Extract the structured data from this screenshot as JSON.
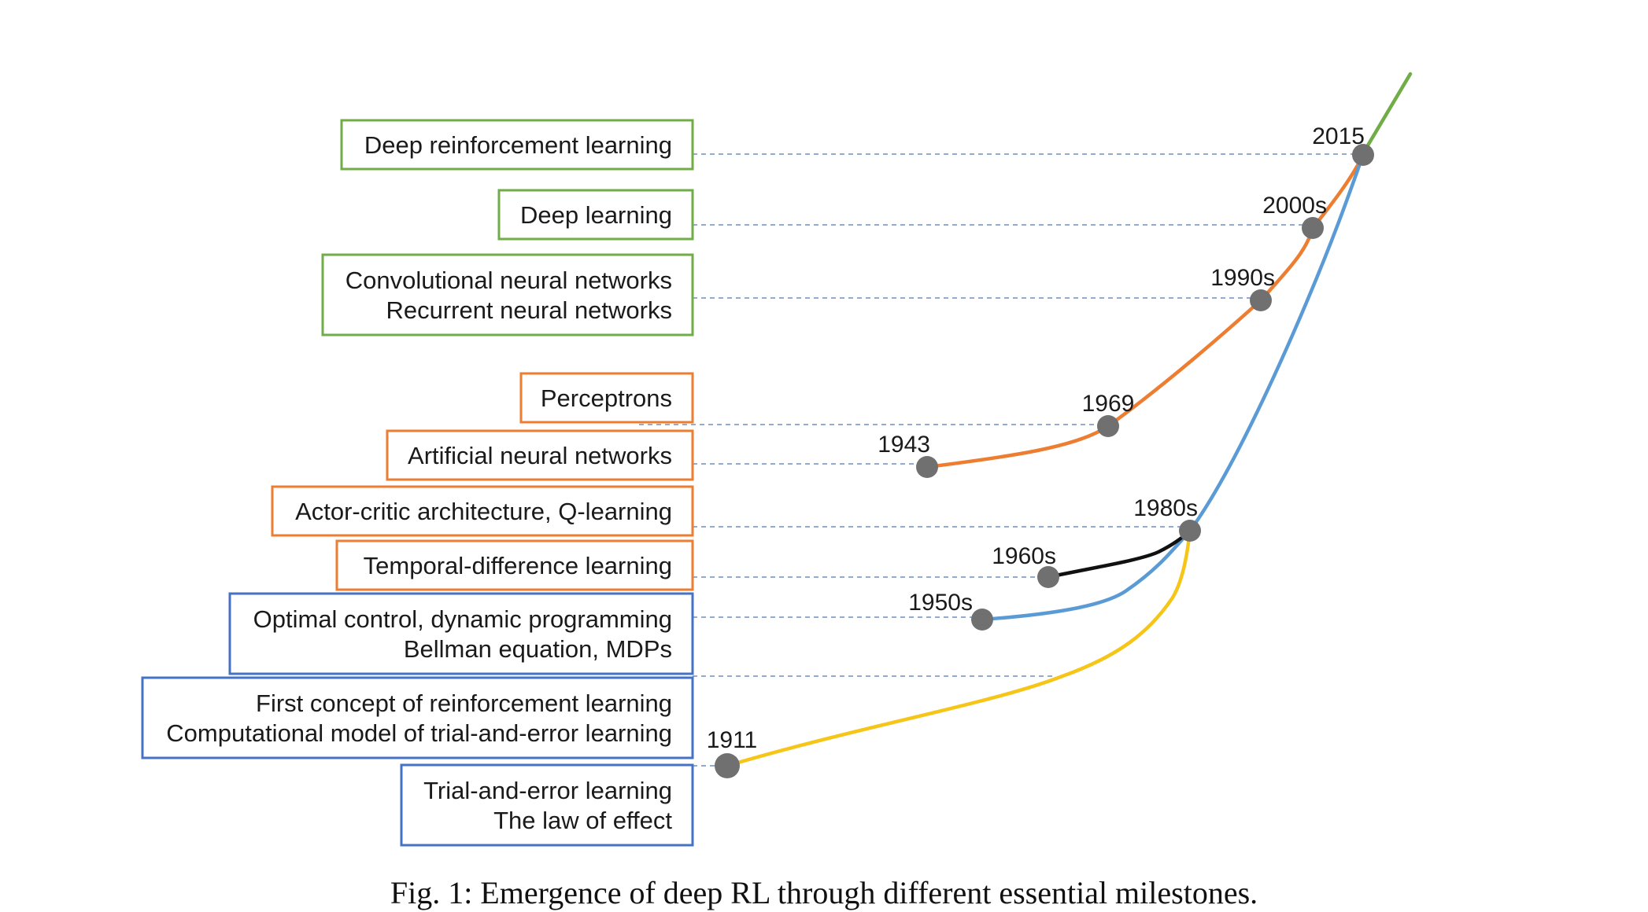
{
  "colors": {
    "green": "#70ad47",
    "orange": "#ed7d31",
    "blue": "#4472c4",
    "curve_blue": "#5b9bd5",
    "yellow": "#f5c518",
    "black": "#111111",
    "dot": "#707070",
    "guide": "#6f8fbf"
  },
  "milestones": [
    {
      "lines": [
        "Deep reinforcement learning"
      ],
      "color": "green"
    },
    {
      "lines": [
        "Deep learning"
      ],
      "color": "green"
    },
    {
      "lines": [
        "Convolutional neural networks",
        "Recurrent neural networks"
      ],
      "color": "green"
    },
    {
      "lines": [
        "Perceptrons"
      ],
      "color": "orange"
    },
    {
      "lines": [
        "Artificial neural networks"
      ],
      "color": "orange"
    },
    {
      "lines": [
        "Actor-critic architecture, Q-learning"
      ],
      "color": "orange"
    },
    {
      "lines": [
        "Temporal-difference learning"
      ],
      "color": "orange"
    },
    {
      "lines": [
        "Optimal control, dynamic programming",
        "Bellman equation, MDPs"
      ],
      "color": "blue"
    },
    {
      "lines": [
        "First concept of reinforcement learning",
        "Computational model of trial-and-error learning"
      ],
      "color": "blue"
    },
    {
      "lines": [
        "Trial-and-error learning",
        "The law of effect"
      ],
      "color": "blue"
    }
  ],
  "years": [
    "2015",
    "2000s",
    "1990s",
    "1969",
    "1943",
    "1980s",
    "1960s",
    "1950s",
    "1911"
  ],
  "caption": "Fig. 1: Emergence of deep RL through different essential milestones."
}
